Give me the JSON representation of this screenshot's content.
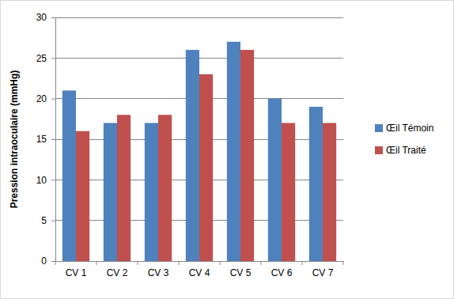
{
  "chart_data": {
    "type": "bar",
    "y_label": "Pression intraoculaire (mmHg)",
    "categories": [
      "CV 1",
      "CV 2",
      "CV 3",
      "CV 4",
      "CV 5",
      "CV 6",
      "CV 7"
    ],
    "series": [
      {
        "name": "Œil Témoin",
        "color": "#4f81bd",
        "values": [
          21,
          17,
          17,
          26,
          27,
          20,
          19
        ]
      },
      {
        "name": "Œil Traité",
        "color": "#c0504d",
        "values": [
          16,
          18,
          18,
          23,
          26,
          17,
          17
        ]
      }
    ],
    "ylim": [
      0,
      30
    ],
    "yticks": [
      0,
      5,
      10,
      15,
      20,
      25,
      30
    ],
    "grid": true,
    "legend": "right"
  }
}
